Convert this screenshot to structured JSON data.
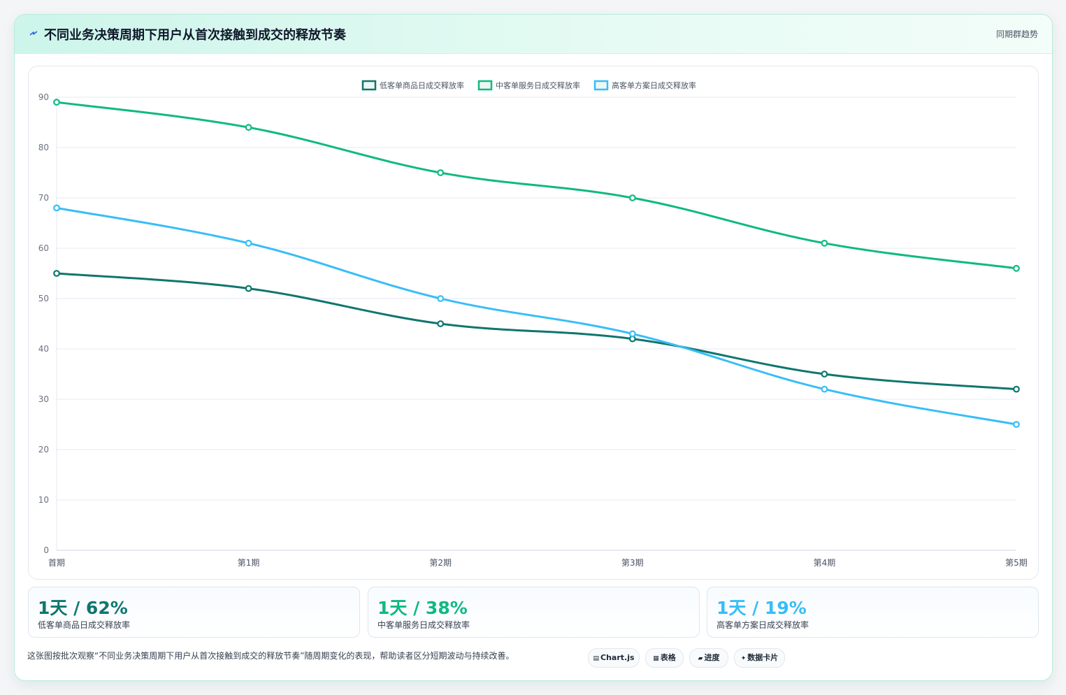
{
  "header": {
    "title": "不同业务决策周期下用户从首次接触到成交的释放节奏",
    "badge": "同期群趋势",
    "icon": "lightning-icon"
  },
  "colors": {
    "low": "#0f766e",
    "mid": "#10b981",
    "high": "#38bdf8",
    "grid": "#e6eaf3",
    "axis_text": "#6b7280"
  },
  "chart_data": {
    "type": "line",
    "categories": [
      "首期",
      "第1期",
      "第2期",
      "第3期",
      "第4期",
      "第5期"
    ],
    "ylim": [
      0,
      90
    ],
    "yticks": [
      0,
      10,
      20,
      30,
      40,
      50,
      60,
      70,
      80,
      90
    ],
    "grid": true,
    "legend_position": "top-center",
    "series": [
      {
        "name": "低客单商品日成交释放率",
        "color": "#0f766e",
        "values": [
          55,
          52,
          45,
          42,
          35,
          32
        ]
      },
      {
        "name": "中客单服务日成交释放率",
        "color": "#10b981",
        "values": [
          89,
          84,
          75,
          70,
          61,
          56
        ]
      },
      {
        "name": "高客单方案日成交释放率",
        "color": "#38bdf8",
        "values": [
          68,
          61,
          50,
          43,
          32,
          25
        ]
      }
    ]
  },
  "stats": [
    {
      "value": "1天 / 62%",
      "label": "低客单商品日成交释放率",
      "color": "#0f766e"
    },
    {
      "value": "1天 / 38%",
      "label": "中客单服务日成交释放率",
      "color": "#10b981"
    },
    {
      "value": "1天 / 19%",
      "label": "高客单方案日成交释放率",
      "color": "#38bdf8"
    }
  ],
  "footnote": "这张图按批次观察“不同业务决策周期下用户从首次接触到成交的释放节奏”随周期变化的表现，帮助读者区分短期波动与持续改善。",
  "tags": [
    {
      "icon": "chart-icon",
      "glyph": "▤",
      "label": "Chart.js"
    },
    {
      "icon": "table-icon",
      "glyph": "▦",
      "label": "表格"
    },
    {
      "icon": "progress-icon",
      "glyph": "▰",
      "label": "进度"
    },
    {
      "icon": "card-icon",
      "glyph": "✦",
      "label": "数据卡片"
    }
  ]
}
